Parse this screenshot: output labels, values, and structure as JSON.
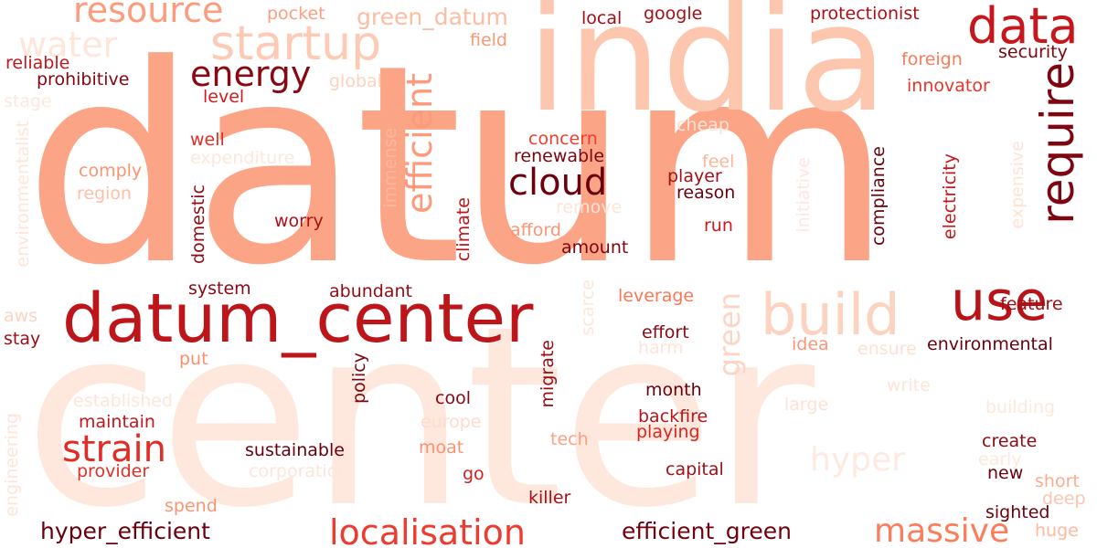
{
  "words": [
    {
      "text": "center",
      "color": "#fee8dd"
    },
    {
      "text": "datum",
      "color": "#fca486"
    },
    {
      "text": "india",
      "color": "#fdc6af"
    },
    {
      "text": "datum_center",
      "color": "#bc151a"
    },
    {
      "text": "startup",
      "color": "#fdcab5"
    },
    {
      "text": "build",
      "color": "#fcd3c1"
    },
    {
      "text": "data",
      "color": "#c8171c"
    },
    {
      "text": "require",
      "color": "#7f0610"
    },
    {
      "text": "use",
      "color": "#b91319"
    },
    {
      "text": "water",
      "color": "#fee6da"
    },
    {
      "text": "resource",
      "color": "#fc9c7d"
    },
    {
      "text": "energy",
      "color": "#8a0812"
    },
    {
      "text": "efficient",
      "color": "#fc9a7b"
    },
    {
      "text": "cloud",
      "color": "#6b010e"
    },
    {
      "text": "strain",
      "color": "#e12d26"
    },
    {
      "text": "localisation",
      "color": "#ec3c30"
    },
    {
      "text": "massive",
      "color": "#fb7d5d"
    },
    {
      "text": "hyper",
      "color": "#feeae1"
    },
    {
      "text": "green",
      "color": "#fdd5c4"
    },
    {
      "text": "green_datum",
      "color": "#fcbda4"
    },
    {
      "text": "hyper_efficient",
      "color": "#67000d"
    },
    {
      "text": "efficient_green",
      "color": "#6f020e"
    },
    {
      "text": "pocket",
      "color": "#fc9e80"
    },
    {
      "text": "field",
      "color": "#fc9777"
    },
    {
      "text": "local",
      "color": "#a10e15"
    },
    {
      "text": "google",
      "color": "#a50f15"
    },
    {
      "text": "protectionist",
      "color": "#ab1016"
    },
    {
      "text": "reliable",
      "color": "#c3161b"
    },
    {
      "text": "prohibitive",
      "color": "#840711"
    },
    {
      "text": "global",
      "color": "#fdd2bf"
    },
    {
      "text": "level",
      "color": "#cf1c1f"
    },
    {
      "text": "stage",
      "color": "#fee7dc"
    },
    {
      "text": "foreign",
      "color": "#fb7a5a"
    },
    {
      "text": "security",
      "color": "#7c0510"
    },
    {
      "text": "innovator",
      "color": "#e83429"
    },
    {
      "text": "environmentalist",
      "color": "#fee5d9"
    },
    {
      "text": "well",
      "color": "#e12d26"
    },
    {
      "text": "expenditure",
      "color": "#fee7dc"
    },
    {
      "text": "comply",
      "color": "#fc9373"
    },
    {
      "text": "region",
      "color": "#fcbfa7"
    },
    {
      "text": "immense",
      "color": "#fcb89e"
    },
    {
      "text": "concern",
      "color": "#f03f2e"
    },
    {
      "text": "renewable",
      "color": "#7a0510"
    },
    {
      "text": "cheap",
      "color": "#fee3d6"
    },
    {
      "text": "feel",
      "color": "#fcb69b"
    },
    {
      "text": "player",
      "color": "#a50f15"
    },
    {
      "text": "reason",
      "color": "#6b010e"
    },
    {
      "text": "compliance",
      "color": "#69000d"
    },
    {
      "text": "initiative",
      "color": "#fee7dc"
    },
    {
      "text": "electricity",
      "color": "#c8171c"
    },
    {
      "text": "expensive",
      "color": "#fee2d5"
    },
    {
      "text": "domestic",
      "color": "#940b13"
    },
    {
      "text": "worry",
      "color": "#ad1117"
    },
    {
      "text": "climate",
      "color": "#bd151a"
    },
    {
      "text": "afford",
      "color": "#fc9474"
    },
    {
      "text": "remove",
      "color": "#fee5d8"
    },
    {
      "text": "run",
      "color": "#cc191e"
    },
    {
      "text": "amount",
      "color": "#7a0510"
    },
    {
      "text": "system",
      "color": "#8c0912"
    },
    {
      "text": "abundant",
      "color": "#960b13"
    },
    {
      "text": "leverage",
      "color": "#fb7757"
    },
    {
      "text": "feature",
      "color": "#a00e15"
    },
    {
      "text": "aws",
      "color": "#fdd4c2"
    },
    {
      "text": "stay",
      "color": "#9e0d14"
    },
    {
      "text": "put",
      "color": "#fc8e6e"
    },
    {
      "text": "policy",
      "color": "#7e0610"
    },
    {
      "text": "migrate",
      "color": "#99 0c14"
    },
    {
      "text": "scarce",
      "color": "#fee6da"
    },
    {
      "text": "effort",
      "color": "#8c0912"
    },
    {
      "text": "harm",
      "color": "#fee3d7"
    },
    {
      "text": "idea",
      "color": "#fc9576"
    },
    {
      "text": "ensure",
      "color": "#fee1d4"
    },
    {
      "text": "environmental",
      "color": "#6b010e"
    },
    {
      "text": "write",
      "color": "#fee4d8"
    },
    {
      "text": "established",
      "color": "#fee5d8"
    },
    {
      "text": "cool",
      "color": "#840711"
    },
    {
      "text": "month",
      "color": "#67000d"
    },
    {
      "text": "large",
      "color": "#fee1d4"
    },
    {
      "text": "building",
      "color": "#fee8dd"
    },
    {
      "text": "maintain",
      "color": "#c4161c"
    },
    {
      "text": "europe",
      "color": "#fedbcc"
    },
    {
      "text": "backfire",
      "color": "#b81419"
    },
    {
      "text": "playing",
      "color": "#d92523"
    },
    {
      "text": "engineering",
      "color": "#fee4d8"
    },
    {
      "text": "sustainable",
      "color": "#67000d"
    },
    {
      "text": "moat",
      "color": "#fc9272"
    },
    {
      "text": "tech",
      "color": "#fca082"
    },
    {
      "text": "create",
      "color": "#8e0912"
    },
    {
      "text": "early",
      "color": "#fee7dc"
    },
    {
      "text": "provider",
      "color": "#e32f27"
    },
    {
      "text": "corporation",
      "color": "#fee5d9"
    },
    {
      "text": "go",
      "color": "#d42020"
    },
    {
      "text": "capital",
      "color": "#a30f15"
    },
    {
      "text": "new",
      "color": "#6b010e"
    },
    {
      "text": "short",
      "color": "#fcab8f"
    },
    {
      "text": "deep",
      "color": "#fdc5ae"
    },
    {
      "text": "spend",
      "color": "#fc9474"
    },
    {
      "text": "killer",
      "color": "#ab1016"
    },
    {
      "text": "sighted",
      "color": "#6d010e"
    },
    {
      "text": "huge",
      "color": "#fcb99f"
    }
  ]
}
